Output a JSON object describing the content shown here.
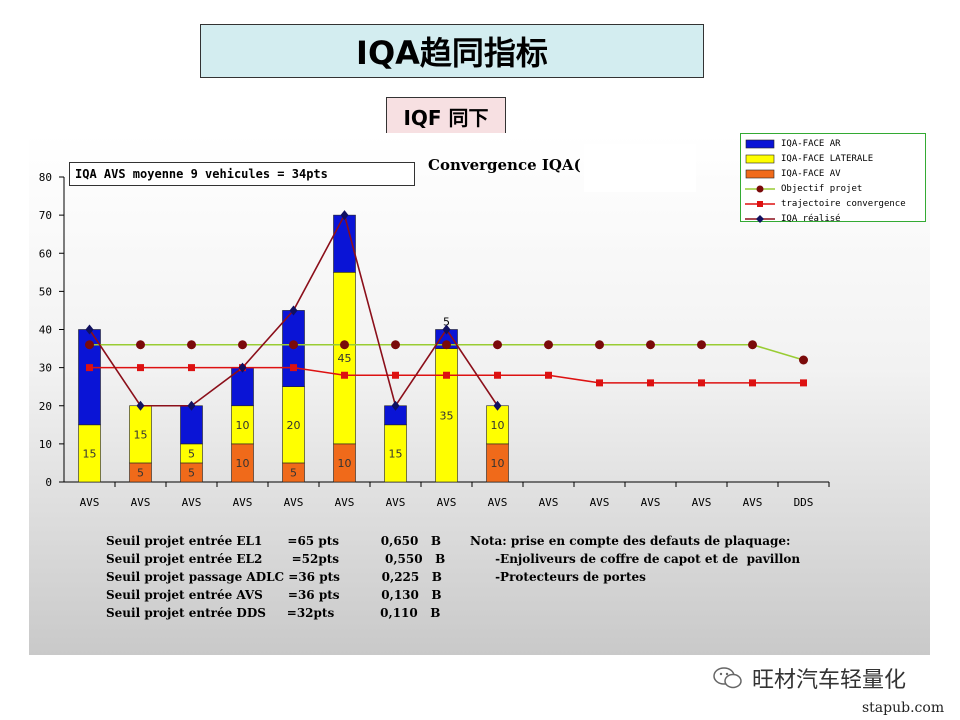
{
  "header": {
    "title": "IQA趋同指标",
    "subtitle": "IQF 同下"
  },
  "colors": {
    "face_ar": "#0a14d6",
    "face_laterale": "#ffff00",
    "face_av": "#f06a1a",
    "objectif": "#7a0a0a",
    "objectif_line": "#99cc33",
    "trajectoire": "#dd1111",
    "realise": "#8b0f1a",
    "realise_marker": "#101060"
  },
  "chart_data": {
    "type": "bar",
    "title": "Convergence IQA(",
    "annotation": "IQA AVS moyenne 9 vehicules = 34pts",
    "categories": [
      "AVS",
      "AVS",
      "AVS",
      "AVS",
      "AVS",
      "AVS",
      "AVS",
      "AVS",
      "AVS",
      "AVS",
      "AVS",
      "AVS",
      "AVS",
      "AVS",
      "DDS"
    ],
    "ylim": [
      0,
      80
    ],
    "yticks": [
      0,
      10,
      20,
      30,
      40,
      50,
      60,
      70,
      80
    ],
    "grid": false,
    "legend_position": "top-right",
    "stacked_series": [
      {
        "name": "IQA-FACE AV",
        "values": [
          0,
          5,
          5,
          10,
          5,
          10,
          0,
          0,
          10
        ],
        "labels": [
          "",
          "5",
          "5",
          "10",
          "5",
          "10",
          "",
          "",
          "10"
        ]
      },
      {
        "name": "IQA-FACE LATERALE",
        "values": [
          15,
          15,
          5,
          10,
          20,
          45,
          15,
          35,
          10
        ],
        "labels": [
          "15",
          "15",
          "5",
          "10",
          "20",
          "45",
          "15",
          "35",
          "10"
        ]
      },
      {
        "name": "IQA-FACE AR",
        "values": [
          25,
          0,
          10,
          10,
          20,
          15,
          5,
          5,
          0
        ],
        "labels": [
          "",
          "",
          "",
          "",
          "",
          "",
          "",
          "5",
          ""
        ]
      }
    ],
    "line_series": [
      {
        "name": "Objectif projet",
        "values": [
          36,
          36,
          36,
          36,
          36,
          36,
          36,
          36,
          36,
          36,
          36,
          36,
          36,
          36,
          32
        ]
      },
      {
        "name": "trajectoire convergence",
        "values": [
          30,
          30,
          30,
          30,
          30,
          28,
          28,
          28,
          28,
          28,
          26,
          26,
          26,
          26,
          26
        ]
      },
      {
        "name": "IQA réalisé",
        "values": [
          40,
          20,
          20,
          30,
          45,
          70,
          20,
          40,
          20
        ]
      }
    ],
    "legend_order": [
      "IQA-FACE AR",
      "IQA-FACE LATERALE",
      "IQA-FACE AV",
      "Objectif projet",
      "trajectoire convergence",
      "IQA réalisé"
    ]
  },
  "notes": {
    "left": [
      "Seuil projet entrée EL1      =65 pts          0,650   B",
      "Seuil projet entrée EL2       =52pts           0,550   B",
      "Seuil projet passage ADLC =36 pts          0,225   B",
      "Seuil projet entrée AVS      =36 pts          0,130   B",
      "Seuil projet entrée DDS     =32pts           0,110   B"
    ],
    "right": [
      "Nota: prise en compte des defauts de plaquage:",
      "      -Enjoliveurs de coffre de capot et de  pavillon",
      "      -Protecteurs de portes"
    ]
  },
  "watermark": {
    "text": "旺材汽车轻量化",
    "icon": "wechat-icon"
  },
  "site": "stapub.com"
}
